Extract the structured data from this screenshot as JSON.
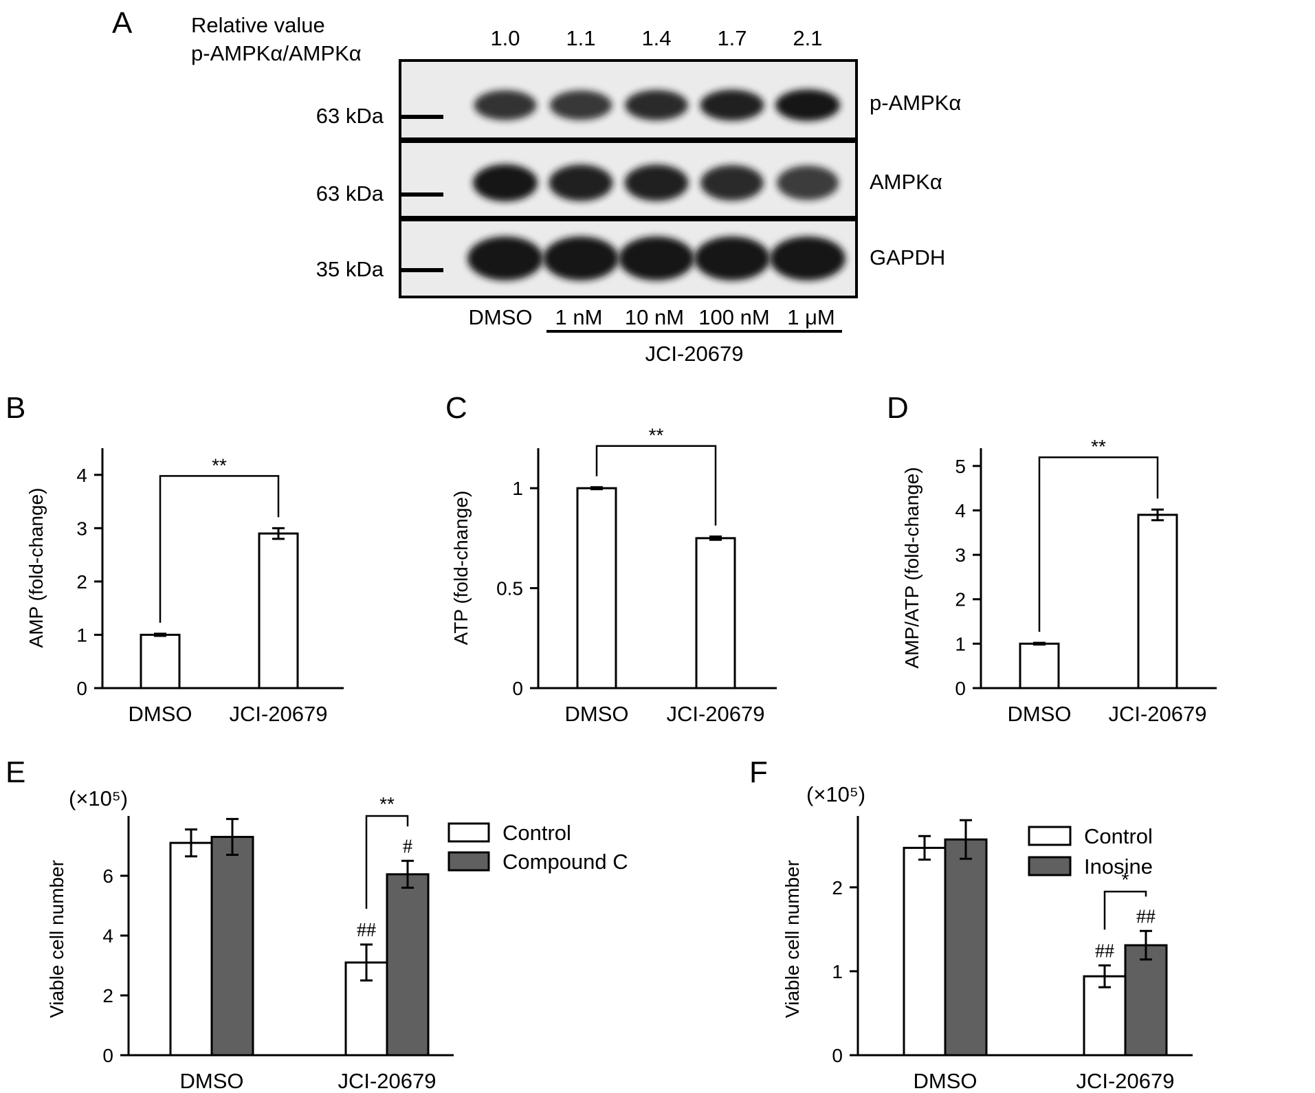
{
  "colors": {
    "control": "#ffffff",
    "treated": "#606060",
    "blot_bg": "#ebebeb",
    "band": "#151515"
  },
  "panel_a": {
    "letter": "A",
    "relative_label": [
      "Relative value",
      "p-AMPKα/AMPKα"
    ],
    "relative_values": [
      "1.0",
      "1.1",
      "1.4",
      "1.7",
      "2.1"
    ],
    "blots": [
      {
        "name": "p-AMPKα",
        "marker": "63 kDa",
        "intensity": [
          0.78,
          0.75,
          0.84,
          0.93,
          1.0
        ]
      },
      {
        "name": "AMPKα",
        "marker": "63 kDa",
        "intensity": [
          1.0,
          0.93,
          0.92,
          0.84,
          0.72
        ]
      },
      {
        "name": "GAPDH",
        "marker": "35 kDa",
        "intensity": [
          1.0,
          1.0,
          1.0,
          1.0,
          1.0
        ]
      }
    ],
    "lanes": [
      "DMSO",
      "1 nM",
      "10 nM",
      "100 nM",
      "1 μM"
    ],
    "treatment": "JCI-20679"
  },
  "chart_data": [
    {
      "panel": "B",
      "type": "bar",
      "categories": [
        "DMSO",
        "JCI-20679"
      ],
      "values": [
        1.0,
        2.9
      ],
      "errors": [
        0.02,
        0.1
      ],
      "ylabel": "AMP (fold-change)",
      "ylim": [
        0,
        4.5
      ],
      "yticks": [
        "0",
        "1",
        "2",
        "3",
        "4"
      ],
      "significance": "**"
    },
    {
      "panel": "C",
      "type": "bar",
      "categories": [
        "DMSO",
        "JCI-20679"
      ],
      "values": [
        1.0,
        0.75
      ],
      "errors": [
        0.005,
        0.008
      ],
      "ylabel": "ATP (fold-change)",
      "ylim": [
        0,
        1.2
      ],
      "yticks": [
        "0",
        "0.5",
        "1"
      ],
      "significance": "**"
    },
    {
      "panel": "D",
      "type": "bar",
      "categories": [
        "DMSO",
        "JCI-20679"
      ],
      "values": [
        1.0,
        3.9
      ],
      "errors": [
        0.02,
        0.12
      ],
      "ylabel": "AMP/ATP (fold-change)",
      "ylim": [
        0,
        5.4
      ],
      "yticks": [
        "0",
        "1",
        "2",
        "3",
        "4",
        "5"
      ],
      "significance": "**"
    },
    {
      "panel": "E",
      "type": "bar",
      "categories": [
        "DMSO",
        "JCI-20679"
      ],
      "series": [
        {
          "name": "Control",
          "values": [
            7.1,
            3.1
          ],
          "errors": [
            0.45,
            0.6
          ]
        },
        {
          "name": "Compound C",
          "values": [
            7.3,
            6.05
          ],
          "errors": [
            0.6,
            0.45
          ]
        }
      ],
      "ylabel": "Viable cell number",
      "multiplier": "(×10⁵)",
      "ylim": [
        0,
        8
      ],
      "yticks": [
        "0",
        "2",
        "4",
        "6"
      ],
      "marks": {
        "control_treated": "##",
        "inhibitor_treated": "#"
      },
      "significance": "**",
      "legend_position": "top-right"
    },
    {
      "panel": "F",
      "type": "bar",
      "categories": [
        "DMSO",
        "JCI-20679"
      ],
      "series": [
        {
          "name": "Control",
          "values": [
            2.47,
            0.94
          ],
          "errors": [
            0.14,
            0.13
          ]
        },
        {
          "name": "Inosine",
          "values": [
            2.57,
            1.31
          ],
          "errors": [
            0.23,
            0.17
          ]
        }
      ],
      "ylabel": "Viable cell number",
      "multiplier": "(×10⁵)",
      "ylim": [
        0,
        2.85
      ],
      "yticks": [
        "0",
        "1",
        "2"
      ],
      "marks": {
        "control_treated": "##",
        "inhibitor_treated": "##"
      },
      "significance": "*",
      "legend_position": "top-right"
    }
  ]
}
